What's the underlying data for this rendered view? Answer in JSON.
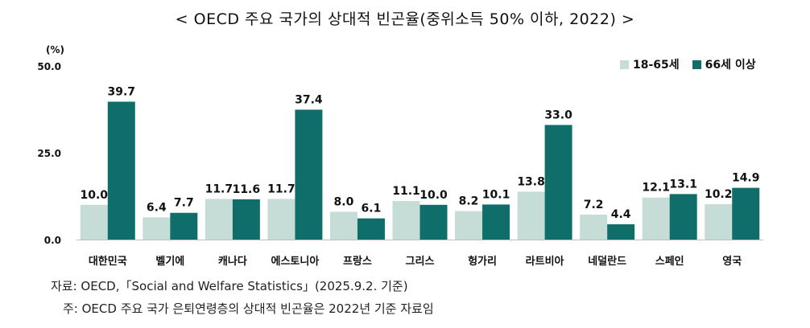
{
  "title": "< OECD 주요 국가의 상대적 빈곤율(중위소득 50% 이하, 2022) >",
  "unit": "(%)",
  "source": "자료: OECD,「Social and Welfare Statistics」(2025.9.2. 기준)",
  "note": "주: OECD 주요 국가 은퇴연령층의 상대적 빈곤율은 2022년 기준 자료임",
  "chart_data": {
    "type": "bar",
    "categories": [
      "대한민국",
      "벨기에",
      "캐나다",
      "에스토니아",
      "프랑스",
      "그리스",
      "헝가리",
      "라트비아",
      "네덜란드",
      "스페인",
      "영국"
    ],
    "series": [
      {
        "name": "18-65세",
        "color": "#c5ddd6",
        "values": [
          10.0,
          6.4,
          11.7,
          11.7,
          8.0,
          11.1,
          8.2,
          13.8,
          7.2,
          12.1,
          10.2
        ]
      },
      {
        "name": "66세 이상",
        "color": "#0f6e6a",
        "values": [
          39.7,
          7.7,
          11.6,
          37.4,
          6.1,
          10.0,
          10.1,
          33.0,
          4.4,
          13.1,
          14.9
        ]
      }
    ],
    "y_ticks": [
      "0.0",
      "25.0",
      "50.0"
    ],
    "ylim": [
      0,
      50
    ],
    "grid": false,
    "legend_position": "top-right"
  }
}
